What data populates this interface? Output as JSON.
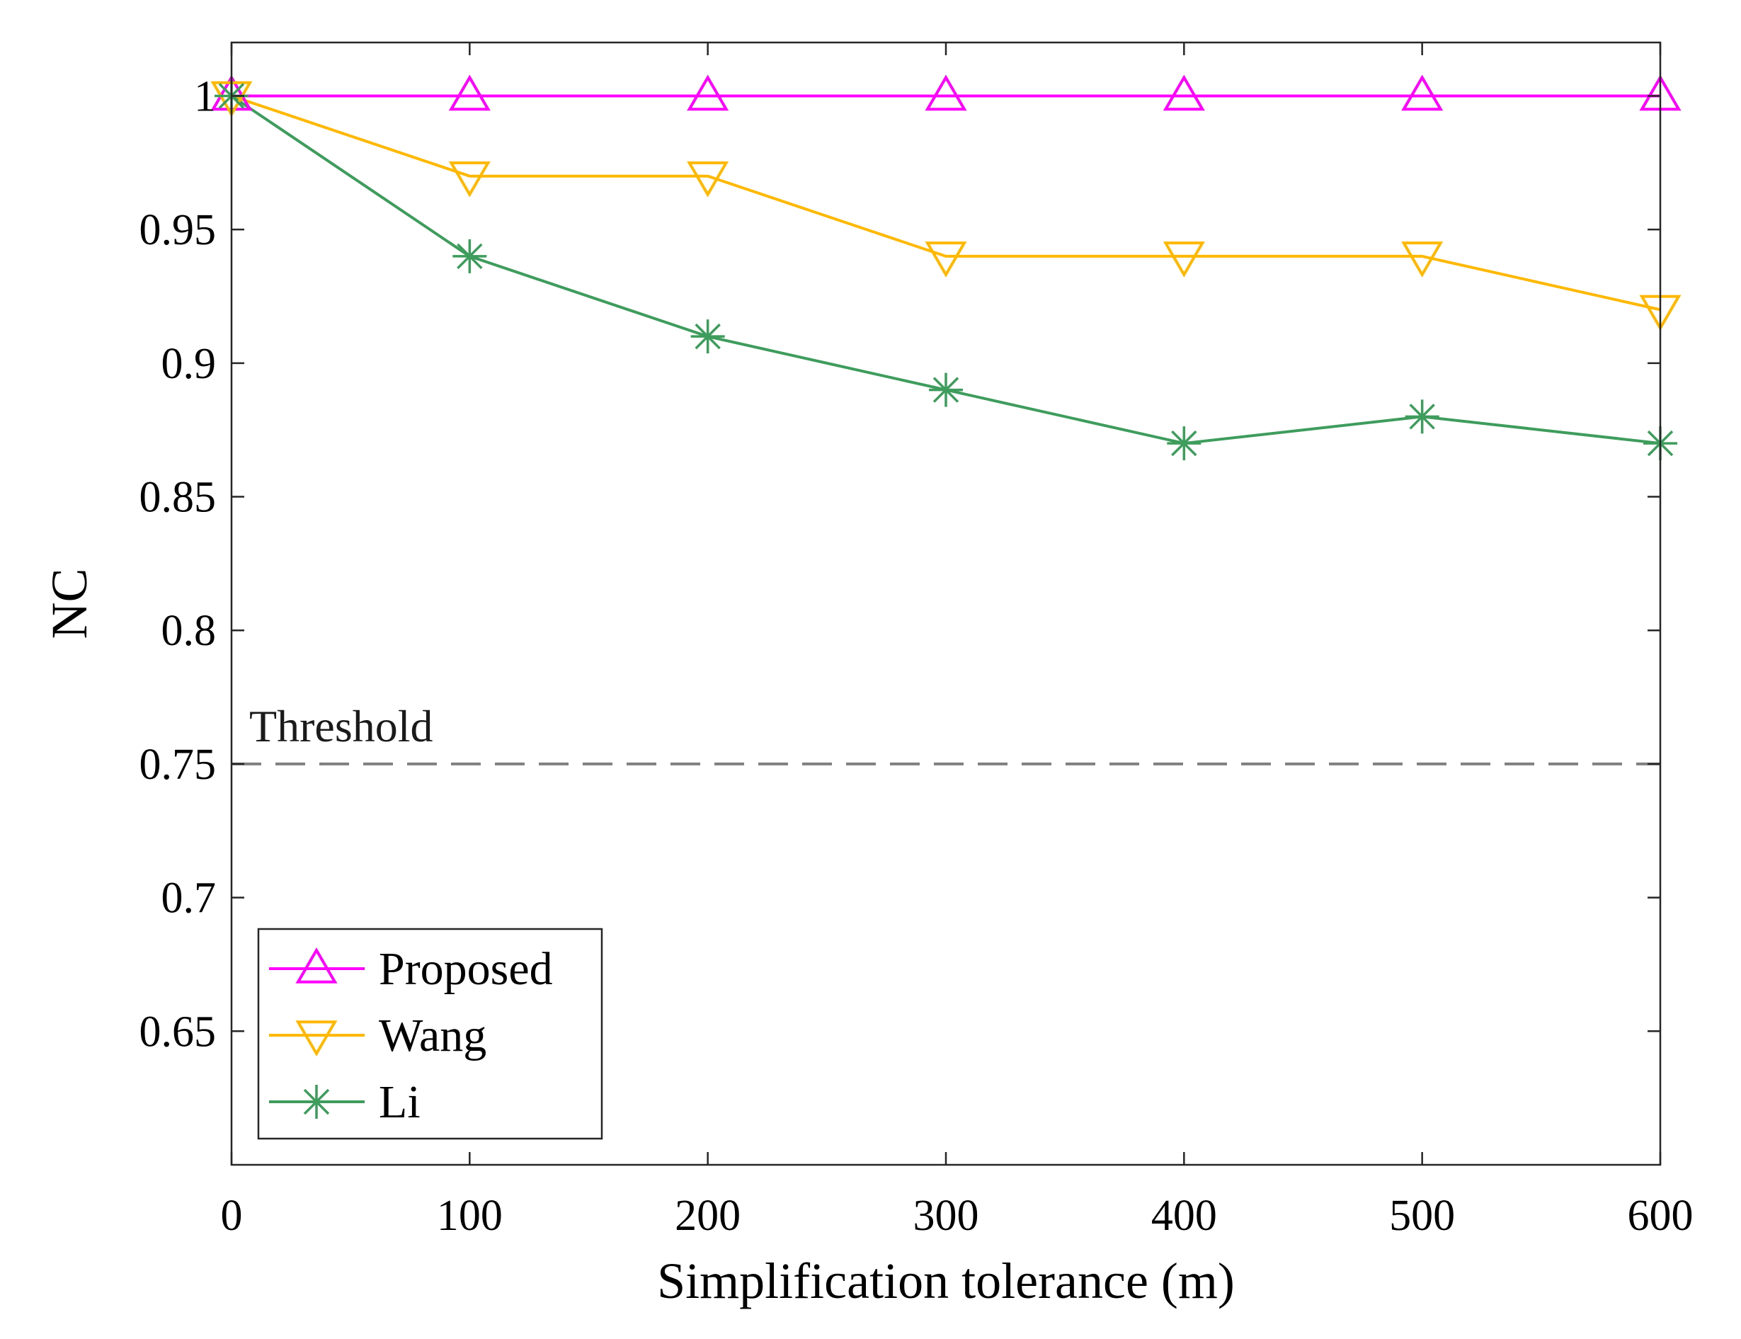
{
  "chart_data": {
    "type": "line",
    "title": "",
    "xlabel": "Simplification tolerance (m)",
    "ylabel": "NC",
    "xlim": [
      0,
      600
    ],
    "ylim": [
      0.6,
      1.02
    ],
    "x": [
      0,
      100,
      200,
      300,
      400,
      500,
      600
    ],
    "xticks": [
      0,
      100,
      200,
      300,
      400,
      500,
      600
    ],
    "xtick_labels": [
      "0",
      "100",
      "200",
      "300",
      "400",
      "500",
      "600"
    ],
    "yticks": [
      0.65,
      0.7,
      0.75,
      0.8,
      0.85,
      0.9,
      0.95,
      1
    ],
    "ytick_labels": [
      "0.65",
      "0.7",
      "0.75",
      "0.8",
      "0.85",
      "0.9",
      "0.95",
      "1"
    ],
    "grid": false,
    "legend_position": "bottom-left",
    "series": [
      {
        "name": "Proposed",
        "values": [
          1,
          1,
          1,
          1,
          1,
          1,
          1
        ],
        "color": "#FF00FF",
        "marker": "triangle-up"
      },
      {
        "name": "Wang",
        "values": [
          1,
          0.97,
          0.97,
          0.94,
          0.94,
          0.94,
          0.92
        ],
        "color": "#FFB800",
        "marker": "triangle-down"
      },
      {
        "name": "Li",
        "values": [
          1,
          0.94,
          0.91,
          0.89,
          0.87,
          0.88,
          0.87
        ],
        "color": "#3E9C5C",
        "marker": "asterisk"
      }
    ],
    "threshold": {
      "value": 0.75,
      "label": "Threshold",
      "color": "#808080"
    }
  }
}
